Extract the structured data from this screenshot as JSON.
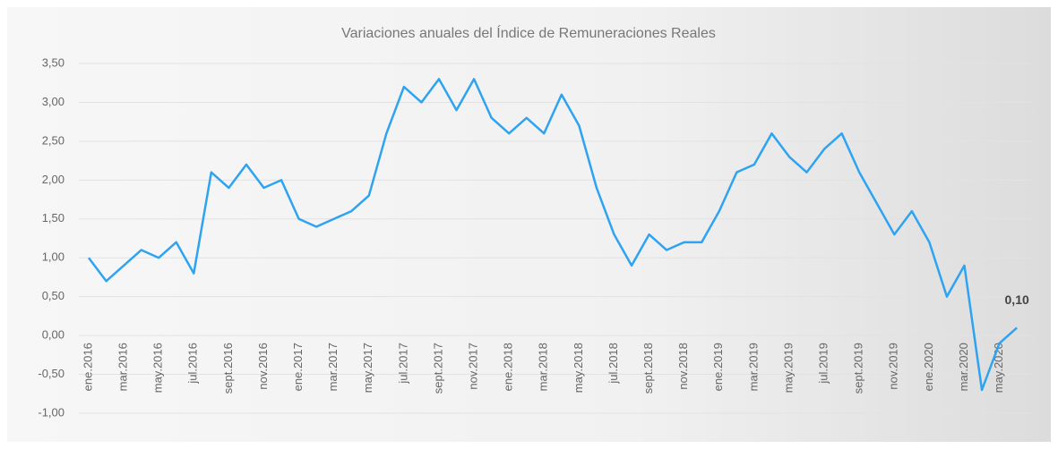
{
  "chart_data": {
    "type": "line",
    "title": "Variaciones anuales del Índice de Remuneraciones Reales",
    "categories": [
      "ene.2016",
      null,
      "mar.2016",
      null,
      "may.2016",
      null,
      "jul.2016",
      null,
      "sept.2016",
      null,
      "nov.2016",
      null,
      "ene.2017",
      null,
      "mar.2017",
      null,
      "may.2017",
      null,
      "jul.2017",
      null,
      "sept.2017",
      null,
      "nov.2017",
      null,
      "ene.2018",
      null,
      "mar.2018",
      null,
      "may.2018",
      null,
      "jul.2018",
      null,
      "sept.2018",
      null,
      "nov.2018",
      null,
      "ene.2019",
      null,
      "mar.2019",
      null,
      "may.2019",
      null,
      "jul.2019",
      null,
      "sept.2019",
      null,
      "nov.2019",
      null,
      "ene.2020",
      null,
      "mar.2020",
      null,
      "may.2020",
      null
    ],
    "values": [
      1.0,
      0.7,
      0.9,
      1.1,
      1.0,
      1.2,
      0.8,
      2.1,
      1.9,
      2.2,
      1.9,
      2.0,
      1.5,
      1.4,
      1.5,
      1.6,
      1.8,
      2.6,
      3.2,
      3.0,
      3.3,
      2.9,
      3.3,
      2.8,
      2.6,
      2.8,
      2.6,
      3.1,
      2.7,
      1.9,
      1.3,
      0.9,
      1.3,
      1.1,
      1.2,
      1.2,
      1.6,
      2.1,
      2.2,
      2.6,
      2.3,
      2.1,
      2.4,
      2.6,
      2.1,
      1.7,
      1.3,
      1.6,
      1.2,
      0.5,
      0.9,
      -0.7,
      -0.1,
      0.1
    ],
    "value_labels": [
      null,
      null,
      null,
      null,
      null,
      null,
      null,
      null,
      null,
      null,
      null,
      null,
      null,
      null,
      null,
      null,
      null,
      null,
      null,
      null,
      null,
      null,
      null,
      null,
      null,
      null,
      null,
      null,
      null,
      null,
      null,
      null,
      null,
      null,
      null,
      null,
      null,
      null,
      null,
      null,
      null,
      null,
      null,
      null,
      null,
      null,
      null,
      null,
      null,
      null,
      null,
      null,
      null,
      "0,10"
    ],
    "color": "#2ea3f2",
    "ylim": [
      -1,
      3.5
    ],
    "yticks": [
      {
        "value": -1,
        "label": "-1,00"
      },
      {
        "value": -0.5,
        "label": "-0,50"
      },
      {
        "value": 0,
        "label": "0,00"
      },
      {
        "value": 0.5,
        "label": "0,50"
      },
      {
        "value": 1,
        "label": "1,00"
      },
      {
        "value": 1.5,
        "label": "1,50"
      },
      {
        "value": 2,
        "label": "2,00"
      },
      {
        "value": 2.5,
        "label": "2,50"
      },
      {
        "value": 3,
        "label": "3,00"
      },
      {
        "value": 3.5,
        "label": "3,50"
      }
    ],
    "grid": true
  }
}
